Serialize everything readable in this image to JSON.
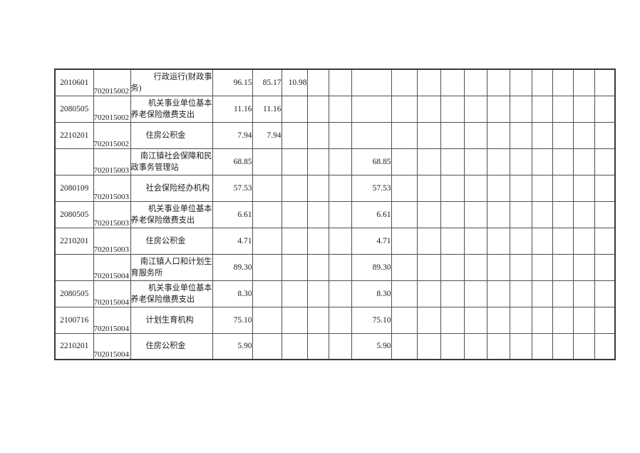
{
  "colors": {
    "page_bg": "#ffffff",
    "text": "#1c1c1c",
    "grid_line": "#4f4f4f",
    "outer_border": "#3a3a3a"
  },
  "table": {
    "column_count": 19,
    "value_column_count": 16,
    "rows": [
      {
        "code1": "2010601",
        "code2": "702015002",
        "desc_full": "行政运行(财政事务)",
        "desc_lines": [
          "行政运行(财政事",
          "务)"
        ],
        "values": [
          "96.15",
          "85.17",
          "10.98",
          "",
          "",
          "",
          "",
          "",
          "",
          "",
          "",
          "",
          "",
          "",
          "",
          ""
        ]
      },
      {
        "code1": "2080505",
        "code2": "702015002",
        "desc_full": "机关事业单位基本养老保险缴费支出",
        "desc_lines": [
          "机关事业单位基本",
          "养老保险缴费支出"
        ],
        "values": [
          "11.16",
          "11.16",
          "",
          "",
          "",
          "",
          "",
          "",
          "",
          "",
          "",
          "",
          "",
          "",
          "",
          ""
        ]
      },
      {
        "code1": "2210201",
        "code2": "702015002",
        "desc_full": "住房公积金",
        "desc_lines": [
          "住房公积金"
        ],
        "values": [
          "7.94",
          "7.94",
          "",
          "",
          "",
          "",
          "",
          "",
          "",
          "",
          "",
          "",
          "",
          "",
          "",
          ""
        ]
      },
      {
        "code1": "",
        "code2": "702015003",
        "desc_full": "南江镇社会保障和民政事务管理站",
        "desc_lines": [
          "南江镇社会保障和民",
          "政事务管理站"
        ],
        "values": [
          "68.85",
          "",
          "",
          "",
          "",
          "68.85",
          "",
          "",
          "",
          "",
          "",
          "",
          "",
          "",
          "",
          ""
        ]
      },
      {
        "code1": "2080109",
        "code2": "702015003",
        "desc_full": "社会保险经办机构",
        "desc_lines": [
          "社会保险经办机构"
        ],
        "values": [
          "57.53",
          "",
          "",
          "",
          "",
          "57.53",
          "",
          "",
          "",
          "",
          "",
          "",
          "",
          "",
          "",
          ""
        ]
      },
      {
        "code1": "2080505",
        "code2": "702015003",
        "desc_full": "机关事业单位基本养老保险缴费支出",
        "desc_lines": [
          "机关事业单位基本",
          "养老保险缴费支出"
        ],
        "values": [
          "6.61",
          "",
          "",
          "",
          "",
          "6.61",
          "",
          "",
          "",
          "",
          "",
          "",
          "",
          "",
          "",
          ""
        ]
      },
      {
        "code1": "2210201",
        "code2": "702015003",
        "desc_full": "住房公积金",
        "desc_lines": [
          "住房公积金"
        ],
        "values": [
          "4.71",
          "",
          "",
          "",
          "",
          "4.71",
          "",
          "",
          "",
          "",
          "",
          "",
          "",
          "",
          "",
          ""
        ]
      },
      {
        "code1": "",
        "code2": "702015004",
        "desc_full": "南江镇人口和计划生育服务所",
        "desc_lines": [
          "南江镇人口和计划生",
          "育服务所"
        ],
        "values": [
          "89.30",
          "",
          "",
          "",
          "",
          "89.30",
          "",
          "",
          "",
          "",
          "",
          "",
          "",
          "",
          "",
          ""
        ]
      },
      {
        "code1": "2080505",
        "code2": "702015004",
        "desc_full": "机关事业单位基本养老保险缴费支出",
        "desc_lines": [
          "机关事业单位基本",
          "养老保险缴费支出"
        ],
        "values": [
          "8.30",
          "",
          "",
          "",
          "",
          "8.30",
          "",
          "",
          "",
          "",
          "",
          "",
          "",
          "",
          "",
          ""
        ]
      },
      {
        "code1": "2100716",
        "code2": "702015004",
        "desc_full": "计划生育机构",
        "desc_lines": [
          "计划生育机构"
        ],
        "values": [
          "75.10",
          "",
          "",
          "",
          "",
          "75.10",
          "",
          "",
          "",
          "",
          "",
          "",
          "",
          "",
          "",
          ""
        ]
      },
      {
        "code1": "2210201",
        "code2": "702015004",
        "desc_full": "住房公积金",
        "desc_lines": [
          "住房公积金"
        ],
        "values": [
          "5.90",
          "",
          "",
          "",
          "",
          "5.90",
          "",
          "",
          "",
          "",
          "",
          "",
          "",
          "",
          "",
          ""
        ]
      }
    ]
  }
}
